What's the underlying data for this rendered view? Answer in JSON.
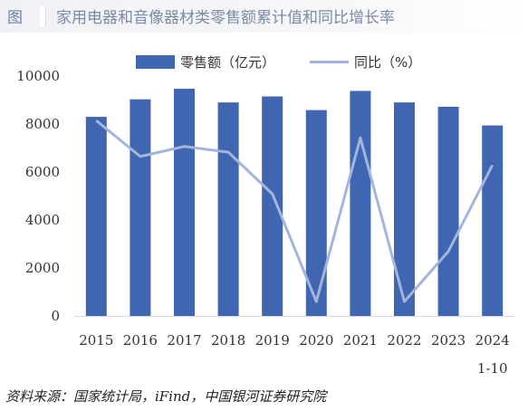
{
  "header": {
    "label": "图",
    "title": "家用电器和音像器材类零售额累计值和同比增长率"
  },
  "source": "资料来源：国家统计局，iFind，中国银河证券研究院",
  "colors": {
    "bar": "#4065b1",
    "line": "#a3b5dc",
    "title": "#7b8aa6"
  },
  "chart_data": {
    "type": "bar",
    "categories": [
      "2015",
      "2016",
      "2017",
      "2018",
      "2019",
      "2020",
      "2021",
      "2022",
      "2023",
      "2024"
    ],
    "category_note": "1-10",
    "series": [
      {
        "name": "零售额（亿元）",
        "type": "bar",
        "axis": "left",
        "values": [
          8300,
          9030,
          9470,
          8900,
          9150,
          8580,
          9380,
          8900,
          8720,
          7940
        ]
      },
      {
        "name": "同比（%）",
        "type": "line",
        "axis": "right",
        "values": [
          13.6,
          11.1,
          11.8,
          11.4,
          8.5,
          1.0,
          12.4,
          1.0,
          4.5,
          10.5
        ]
      }
    ],
    "y_left": {
      "ylim": [
        0,
        10000
      ],
      "ticks": [
        "0",
        "2000",
        "4000",
        "6000",
        "8000",
        "10000"
      ]
    },
    "y_right": {
      "ylim": [
        0,
        16.7
      ]
    },
    "legend": "top-center",
    "grid": false
  }
}
